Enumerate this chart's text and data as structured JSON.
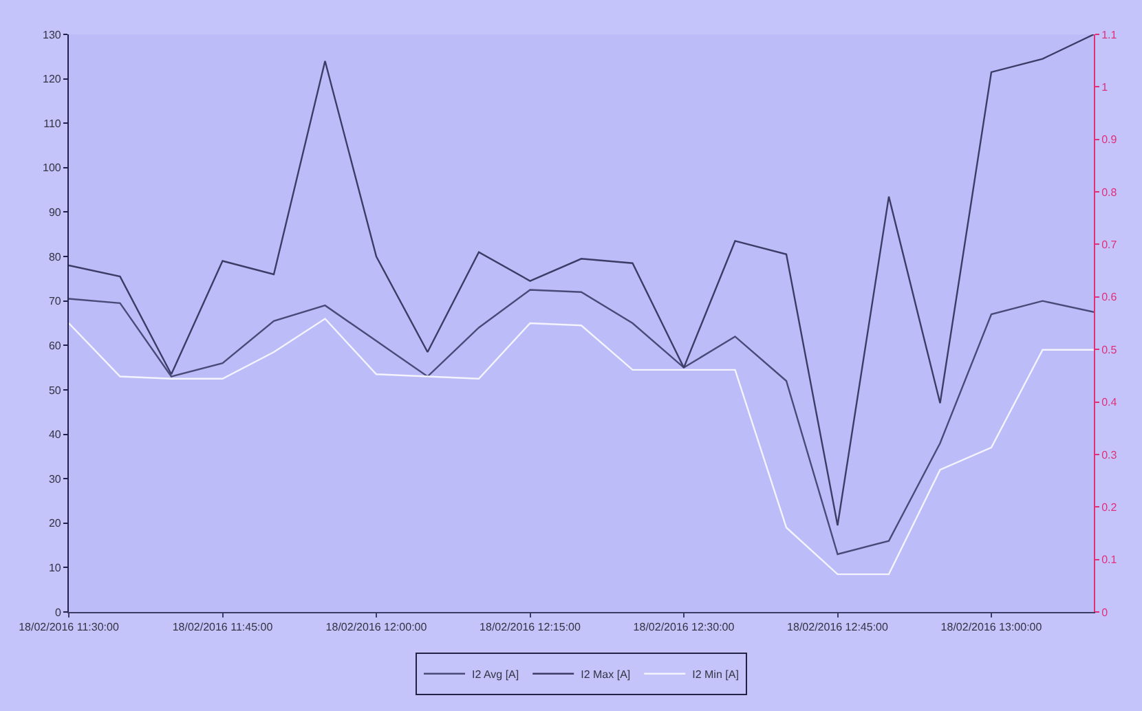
{
  "chart_data": {
    "type": "line",
    "x": [
      "2016-02-18T11:30",
      "2016-02-18T11:35",
      "2016-02-18T11:40",
      "2016-02-18T11:45",
      "2016-02-18T11:50",
      "2016-02-18T11:55",
      "2016-02-18T12:00",
      "2016-02-18T12:05",
      "2016-02-18T12:10",
      "2016-02-18T12:15",
      "2016-02-18T12:20",
      "2016-02-18T12:25",
      "2016-02-18T12:30",
      "2016-02-18T12:35",
      "2016-02-18T12:40",
      "2016-02-18T12:45",
      "2016-02-18T12:50",
      "2016-02-18T12:55",
      "2016-02-18T13:00",
      "2016-02-18T13:05",
      "2016-02-18T13:10"
    ],
    "series": [
      {
        "name": "I2 Avg [A]",
        "color": "#4a4a78",
        "values": [
          70.5,
          69.5,
          53,
          56,
          65.5,
          69,
          61,
          53,
          64,
          72.5,
          72,
          65,
          55,
          62,
          52,
          13,
          16,
          38,
          67,
          70,
          67.5
        ]
      },
      {
        "name": "I2 Max [A]",
        "color": "#3c3c66",
        "values": [
          78,
          75.5,
          53.5,
          79,
          76,
          124,
          80,
          58.5,
          81,
          74.5,
          79.5,
          78.5,
          55,
          83.5,
          80.5,
          19.5,
          93.5,
          47,
          121.5,
          124.5,
          130
        ]
      },
      {
        "name": "I2 Min [A]",
        "color": "#f4f4ff",
        "values": [
          65,
          53,
          52.5,
          52.5,
          58.5,
          66,
          53.5,
          53,
          52.5,
          65,
          64.5,
          54.5,
          54.5,
          54.5,
          19,
          8.5,
          8.5,
          32,
          37,
          59,
          59
        ]
      }
    ],
    "xlim": [
      "2016-02-18T11:30",
      "2016-02-18T13:10"
    ],
    "xticks": [
      {
        "value": "2016-02-18T11:30",
        "label": "18/02/2016 11:30:00"
      },
      {
        "value": "2016-02-18T11:45",
        "label": "18/02/2016 11:45:00"
      },
      {
        "value": "2016-02-18T12:00",
        "label": "18/02/2016 12:00:00"
      },
      {
        "value": "2016-02-18T12:15",
        "label": "18/02/2016 12:15:00"
      },
      {
        "value": "2016-02-18T12:30",
        "label": "18/02/2016 12:30:00"
      },
      {
        "value": "2016-02-18T12:45",
        "label": "18/02/2016 12:45:00"
      },
      {
        "value": "2016-02-18T13:00",
        "label": "18/02/2016 13:00:00"
      }
    ],
    "ylim": [
      0,
      130
    ],
    "yticks": [
      0,
      10,
      20,
      30,
      40,
      50,
      60,
      70,
      80,
      90,
      100,
      110,
      120,
      130
    ],
    "y2lim": [
      0,
      1.1
    ],
    "y2ticks": [
      0,
      0.1,
      0.2,
      0.3,
      0.4,
      0.5,
      0.6,
      0.7,
      0.8,
      0.9,
      1,
      1.1
    ],
    "grid": false,
    "legend": "bottom",
    "marker": "none",
    "line_style": "solid"
  }
}
